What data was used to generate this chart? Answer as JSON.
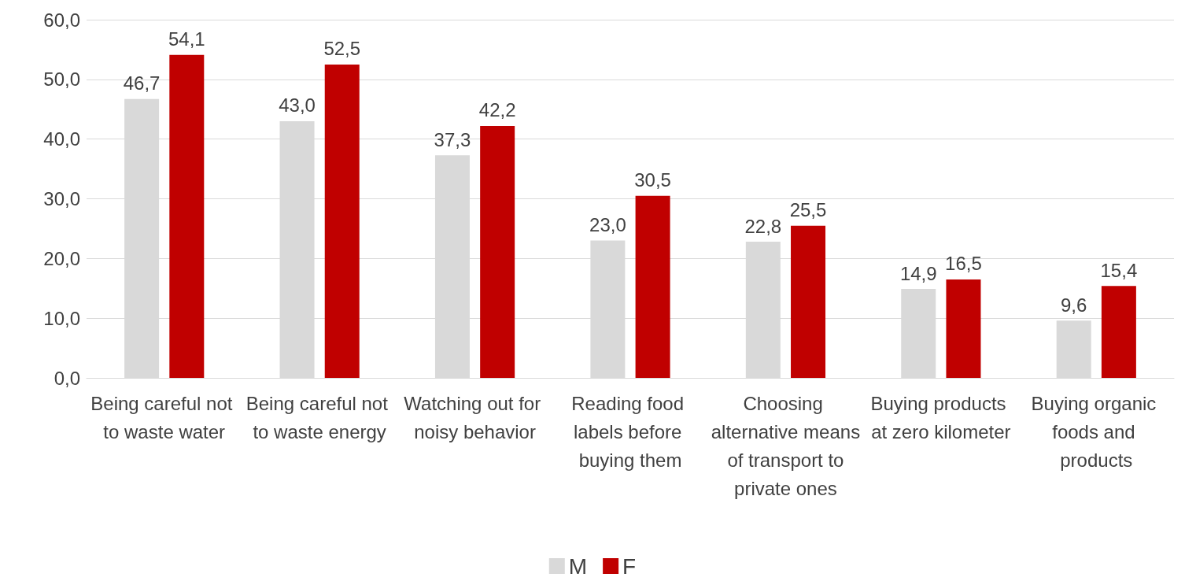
{
  "chart_data": {
    "type": "bar",
    "categories": [
      "Being careful not to waste water",
      "Being careful not to waste energy",
      "Watching out for noisy behavior",
      "Reading food labels before buying them",
      "Choosing alternative means of transport to private ones",
      "Buying products at zero kilometer",
      "Buying organic foods and products"
    ],
    "series": [
      {
        "name": "M",
        "color": "#d9d9d9",
        "values": [
          46.7,
          43.0,
          37.3,
          23.0,
          22.8,
          14.9,
          9.6
        ],
        "value_labels": [
          "46,7",
          "43,0",
          "37,3",
          "23,0",
          "22,8",
          "14,9",
          "9,6"
        ]
      },
      {
        "name": "F",
        "color": "#c00000",
        "values": [
          54.1,
          52.5,
          42.2,
          30.5,
          25.5,
          16.5,
          15.4
        ],
        "value_labels": [
          "54,1",
          "52,5",
          "42,2",
          "30,5",
          "25,5",
          "16,5",
          "15,4"
        ]
      }
    ],
    "ylim": [
      0,
      60
    ],
    "yticks": [
      {
        "value": 0,
        "label": "0,0"
      },
      {
        "value": 10,
        "label": "10,0"
      },
      {
        "value": 20,
        "label": "20,0"
      },
      {
        "value": 30,
        "label": "30,0"
      },
      {
        "value": 40,
        "label": "40,0"
      },
      {
        "value": 50,
        "label": "50,0"
      },
      {
        "value": 60,
        "label": "60,0"
      }
    ],
    "grid": "y",
    "legend": "bottom"
  }
}
